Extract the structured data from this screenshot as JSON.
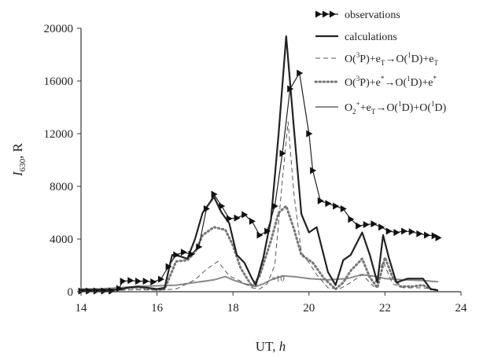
{
  "chart_data": {
    "type": "line",
    "title": "",
    "xlabel": "UT,",
    "xlabel_unit": "h",
    "ylabel_main": "I",
    "ylabel_sub": "630",
    "ylabel_unit": ", R",
    "xlim": [
      14,
      24
    ],
    "ylim": [
      0,
      20000
    ],
    "xticks": [
      14,
      16,
      18,
      20,
      22,
      24
    ],
    "yticks": [
      0,
      4000,
      8000,
      12000,
      16000,
      20000
    ],
    "grid": false,
    "legend_position": "top-right",
    "annotation": {
      "text": "×10",
      "x": 19.0,
      "y": 1050
    },
    "series": [
      {
        "name": "observations",
        "style": "line-triangle-markers",
        "color": "#222222",
        "points": [
          [
            14.0,
            50
          ],
          [
            14.2,
            50
          ],
          [
            14.4,
            50
          ],
          [
            14.6,
            50
          ],
          [
            14.8,
            50
          ],
          [
            15.0,
            250
          ],
          [
            15.1,
            800
          ],
          [
            15.3,
            850
          ],
          [
            15.5,
            800
          ],
          [
            15.7,
            800
          ],
          [
            15.9,
            750
          ],
          [
            16.1,
            950
          ],
          [
            16.3,
            1900
          ],
          [
            16.5,
            2800
          ],
          [
            16.7,
            3000
          ],
          [
            16.9,
            2850
          ],
          [
            17.1,
            3400
          ],
          [
            17.3,
            6300
          ],
          [
            17.5,
            7400
          ],
          [
            17.7,
            6500
          ],
          [
            17.9,
            5550
          ],
          [
            18.1,
            5600
          ],
          [
            18.3,
            5850
          ],
          [
            18.5,
            5350
          ],
          [
            18.7,
            4300
          ],
          [
            18.9,
            4600
          ],
          [
            19.1,
            6500
          ],
          [
            19.3,
            10500
          ],
          [
            19.5,
            15400
          ],
          [
            19.75,
            16600
          ],
          [
            20.0,
            12000
          ],
          [
            20.1,
            9200
          ],
          [
            20.3,
            6900
          ],
          [
            20.5,
            6700
          ],
          [
            20.7,
            6500
          ],
          [
            20.9,
            6300
          ],
          [
            21.1,
            5500
          ],
          [
            21.3,
            5000
          ],
          [
            21.5,
            5100
          ],
          [
            21.7,
            5150
          ],
          [
            21.9,
            4900
          ],
          [
            22.1,
            4600
          ],
          [
            22.3,
            4500
          ],
          [
            22.5,
            4600
          ],
          [
            22.7,
            4550
          ],
          [
            22.9,
            4400
          ],
          [
            23.1,
            4300
          ],
          [
            23.3,
            4250
          ],
          [
            23.4,
            4100
          ]
        ]
      },
      {
        "name": "calculations",
        "style": "solid-thick",
        "color": "#222222",
        "points": [
          [
            14.0,
            150
          ],
          [
            14.5,
            150
          ],
          [
            15.0,
            150
          ],
          [
            15.2,
            300
          ],
          [
            15.5,
            400
          ],
          [
            16.0,
            200
          ],
          [
            16.2,
            300
          ],
          [
            16.4,
            2800
          ],
          [
            16.6,
            2700
          ],
          [
            16.8,
            2500
          ],
          [
            17.0,
            4000
          ],
          [
            17.2,
            6000
          ],
          [
            17.5,
            7200
          ],
          [
            17.7,
            6000
          ],
          [
            17.9,
            5200
          ],
          [
            18.1,
            2800
          ],
          [
            18.3,
            2200
          ],
          [
            18.5,
            1000
          ],
          [
            18.6,
            500
          ],
          [
            18.8,
            2600
          ],
          [
            19.0,
            5500
          ],
          [
            19.2,
            12000
          ],
          [
            19.4,
            19400
          ],
          [
            19.6,
            12500
          ],
          [
            19.8,
            5900
          ],
          [
            20.0,
            4500
          ],
          [
            20.2,
            4900
          ],
          [
            20.5,
            1500
          ],
          [
            20.7,
            500
          ],
          [
            20.9,
            2400
          ],
          [
            21.1,
            2800
          ],
          [
            21.4,
            4500
          ],
          [
            21.6,
            2800
          ],
          [
            21.8,
            700
          ],
          [
            21.95,
            4300
          ],
          [
            22.1,
            2600
          ],
          [
            22.3,
            700
          ],
          [
            22.6,
            1000
          ],
          [
            22.8,
            1000
          ],
          [
            23.0,
            1000
          ],
          [
            23.2,
            200
          ],
          [
            23.4,
            100
          ]
        ]
      },
      {
        "name": "O(3P)+eT→O(1D)+eT",
        "style": "dashed",
        "color": "#555555",
        "points": [
          [
            14.0,
            120
          ],
          [
            15.0,
            120
          ],
          [
            15.5,
            150
          ],
          [
            16.0,
            120
          ],
          [
            16.5,
            200
          ],
          [
            17.0,
            900
          ],
          [
            17.3,
            1700
          ],
          [
            17.6,
            2300
          ],
          [
            17.9,
            1200
          ],
          [
            18.2,
            800
          ],
          [
            18.5,
            300
          ],
          [
            18.7,
            200
          ],
          [
            18.9,
            600
          ],
          [
            19.1,
            2000
          ],
          [
            19.3,
            8500
          ],
          [
            19.45,
            12900
          ],
          [
            19.6,
            7500
          ],
          [
            19.8,
            3000
          ],
          [
            20.0,
            2200
          ],
          [
            20.2,
            1300
          ],
          [
            20.5,
            300
          ],
          [
            20.8,
            200
          ],
          [
            21.1,
            700
          ],
          [
            21.4,
            1300
          ],
          [
            21.7,
            400
          ],
          [
            21.95,
            2300
          ],
          [
            22.2,
            600
          ],
          [
            22.5,
            300
          ],
          [
            23.0,
            300
          ],
          [
            23.4,
            150
          ]
        ]
      },
      {
        "name": "O(3P)+e*→O(1D)+e*",
        "style": "dotted-thick",
        "color": "#777777",
        "points": [
          [
            14.0,
            50
          ],
          [
            14.5,
            100
          ],
          [
            15.0,
            200
          ],
          [
            15.3,
            300
          ],
          [
            15.6,
            300
          ],
          [
            16.0,
            150
          ],
          [
            16.2,
            200
          ],
          [
            16.5,
            2300
          ],
          [
            16.8,
            2400
          ],
          [
            17.0,
            3000
          ],
          [
            17.2,
            4300
          ],
          [
            17.5,
            4900
          ],
          [
            17.8,
            4700
          ],
          [
            18.0,
            3500
          ],
          [
            18.2,
            1800
          ],
          [
            18.5,
            400
          ],
          [
            18.7,
            1200
          ],
          [
            19.0,
            3900
          ],
          [
            19.2,
            6000
          ],
          [
            19.4,
            6500
          ],
          [
            19.6,
            4800
          ],
          [
            19.8,
            2800
          ],
          [
            20.1,
            2200
          ],
          [
            20.4,
            1000
          ],
          [
            20.7,
            200
          ],
          [
            20.9,
            700
          ],
          [
            21.1,
            1600
          ],
          [
            21.4,
            2500
          ],
          [
            21.6,
            1100
          ],
          [
            21.8,
            300
          ],
          [
            22.0,
            2600
          ],
          [
            22.2,
            1100
          ],
          [
            22.4,
            400
          ],
          [
            22.7,
            400
          ],
          [
            23.0,
            500
          ],
          [
            23.2,
            200
          ],
          [
            23.4,
            100
          ]
        ]
      },
      {
        "name": "O2++eT→O(1D)+O(1D)",
        "style": "solid-gray",
        "color": "#8a8a8a",
        "points": [
          [
            14.0,
            200
          ],
          [
            14.5,
            220
          ],
          [
            15.0,
            300
          ],
          [
            15.5,
            400
          ],
          [
            16.0,
            450
          ],
          [
            16.5,
            500
          ],
          [
            17.0,
            700
          ],
          [
            17.5,
            900
          ],
          [
            17.8,
            1150
          ],
          [
            18.0,
            900
          ],
          [
            18.3,
            600
          ],
          [
            18.6,
            400
          ],
          [
            18.8,
            600
          ],
          [
            19.0,
            900
          ],
          [
            19.3,
            1200
          ],
          [
            19.6,
            1150
          ],
          [
            20.0,
            1000
          ],
          [
            20.5,
            900
          ],
          [
            21.0,
            1000
          ],
          [
            21.4,
            1300
          ],
          [
            21.8,
            1150
          ],
          [
            22.0,
            1000
          ],
          [
            22.5,
            900
          ],
          [
            23.0,
            850
          ],
          [
            23.4,
            750
          ]
        ]
      }
    ],
    "legend": [
      {
        "series": 0,
        "parts": [
          {
            "t": "observations"
          }
        ]
      },
      {
        "series": 1,
        "parts": [
          {
            "t": "calculations"
          }
        ]
      },
      {
        "series": 2,
        "parts": [
          {
            "t": "O("
          },
          {
            "t": "3",
            "sup": true
          },
          {
            "t": "P)+e"
          },
          {
            "t": "T",
            "sub": true
          },
          {
            "t": "→O("
          },
          {
            "t": "1",
            "sup": true
          },
          {
            "t": "D)+e"
          },
          {
            "t": "T",
            "sub": true
          }
        ]
      },
      {
        "series": 3,
        "parts": [
          {
            "t": "O("
          },
          {
            "t": "3",
            "sup": true
          },
          {
            "t": "P)+e"
          },
          {
            "t": "*",
            "sup": true
          },
          {
            "t": "→O("
          },
          {
            "t": "1",
            "sup": true
          },
          {
            "t": "D)+e"
          },
          {
            "t": "*",
            "sup": true
          }
        ]
      },
      {
        "series": 4,
        "parts": [
          {
            "t": "O"
          },
          {
            "t": "2",
            "sub": true
          },
          {
            "t": "+",
            "sup": true
          },
          {
            "t": "+e"
          },
          {
            "t": "T",
            "sub": true
          },
          {
            "t": "→O("
          },
          {
            "t": "1",
            "sup": true
          },
          {
            "t": "D)+O("
          },
          {
            "t": "1",
            "sup": true
          },
          {
            "t": "D)"
          }
        ]
      }
    ]
  }
}
